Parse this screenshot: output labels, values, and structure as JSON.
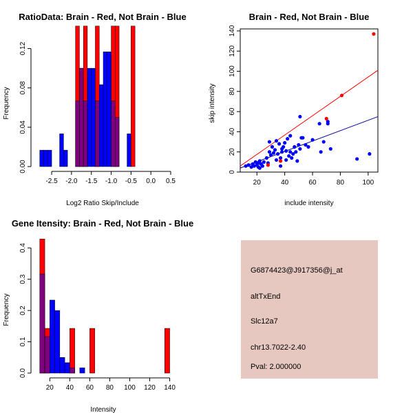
{
  "colors": {
    "brain": "#ff0000",
    "not_brain": "#0000ff",
    "overlap": "#7f007f",
    "panel_bg": "#e6c8c1",
    "pval": "#cc0000"
  },
  "chart_data": [
    {
      "type": "bar",
      "title": "RatioData: Brain - Red, Not Brain - Blue",
      "xlabel": "Log2 Ratio Skip/Include",
      "ylabel": "Frequency",
      "xlim": [
        -2.9,
        0.5
      ],
      "ylim": [
        0,
        0.14
      ],
      "bin_width": 0.1,
      "bin_start": -2.8,
      "x_ticks": [
        -2.5,
        -2.0,
        -1.5,
        -1.0,
        -0.5,
        0.0,
        0.5
      ],
      "x_tick_labels": [
        "-2.5",
        "-2.0",
        "-1.5",
        "-1.0",
        "-0.5",
        "0.0",
        "0.5"
      ],
      "y_ticks": [
        0.0,
        0.04,
        0.08,
        0.12
      ],
      "y_tick_labels": [
        "0.00",
        "0.04",
        "0.08",
        "0.12"
      ],
      "series": [
        {
          "name": "Not Brain",
          "values": [
            0.0167,
            0.0167,
            0.0167,
            0,
            0,
            0.0333,
            0.0167,
            0,
            0,
            0.0667,
            0.1,
            0.0667,
            0.1,
            0.1,
            0.0667,
            0.0833,
            0.1167,
            0.1167,
            0.0667,
            0.05,
            0,
            0,
            0.0333,
            0
          ]
        },
        {
          "name": "Brain",
          "values": [
            0,
            0,
            0,
            0,
            0,
            0,
            0,
            0,
            0,
            0.1429,
            0.1,
            0.1429,
            0,
            0,
            0.1429,
            0,
            0,
            0,
            0.1429,
            0.1429,
            0,
            0,
            0,
            0.1429
          ]
        }
      ]
    },
    {
      "type": "scatter",
      "title": "Brain - Red, Not Brain - Blue",
      "xlabel": "include intensity",
      "ylabel": "skip intensity",
      "xlim": [
        8,
        107
      ],
      "ylim": [
        0,
        142
      ],
      "x_ticks": [
        20,
        40,
        60,
        80,
        100
      ],
      "x_tick_labels": [
        "20",
        "40",
        "60",
        "80",
        "100"
      ],
      "y_ticks": [
        0,
        20,
        40,
        60,
        80,
        100,
        120,
        140
      ],
      "y_tick_labels": [
        "0",
        "20",
        "40",
        "60",
        "80",
        "100",
        "120",
        "140"
      ],
      "series": [
        {
          "name": "Not Brain",
          "points": [
            [
              12,
              6
            ],
            [
              14,
              7
            ],
            [
              16,
              5
            ],
            [
              17,
              8
            ],
            [
              18,
              6
            ],
            [
              19,
              10
            ],
            [
              20,
              7
            ],
            [
              21,
              9
            ],
            [
              21,
              5
            ],
            [
              22,
              11
            ],
            [
              22,
              4
            ],
            [
              23,
              8
            ],
            [
              24,
              6
            ],
            [
              25,
              10
            ],
            [
              27,
              14
            ],
            [
              28,
              9
            ],
            [
              29,
              20
            ],
            [
              29,
              30
            ],
            [
              30,
              17
            ],
            [
              31,
              25
            ],
            [
              32,
              19
            ],
            [
              33,
              22
            ],
            [
              34,
              12
            ],
            [
              34,
              31
            ],
            [
              35,
              18
            ],
            [
              36,
              28
            ],
            [
              37,
              6
            ],
            [
              37,
              14
            ],
            [
              38,
              20
            ],
            [
              38,
              23
            ],
            [
              39,
              25
            ],
            [
              40,
              29
            ],
            [
              41,
              21
            ],
            [
              41,
              12
            ],
            [
              42,
              33
            ],
            [
              43,
              16
            ],
            [
              44,
              20
            ],
            [
              44,
              36
            ],
            [
              45,
              14
            ],
            [
              46,
              18
            ],
            [
              47,
              25
            ],
            [
              48,
              20
            ],
            [
              49,
              11
            ],
            [
              50,
              27
            ],
            [
              51,
              55
            ],
            [
              51,
              23
            ],
            [
              52,
              34
            ],
            [
              53,
              34
            ],
            [
              55,
              27
            ],
            [
              57,
              25
            ],
            [
              60,
              32
            ],
            [
              65,
              48
            ],
            [
              66,
              20
            ],
            [
              68,
              30
            ],
            [
              71,
              50
            ],
            [
              71,
              48
            ],
            [
              73,
              23
            ],
            [
              92,
              13
            ],
            [
              101,
              18
            ]
          ]
        },
        {
          "name": "Brain",
          "points": [
            [
              28,
              7
            ],
            [
              37,
              11
            ],
            [
              70,
              53
            ],
            [
              81,
              76
            ],
            [
              104,
              137
            ]
          ]
        }
      ],
      "fit_lines": [
        {
          "name": "Brain fit",
          "from": [
            8,
            6
          ],
          "to": [
            107,
            101
          ]
        },
        {
          "name": "Not Brain fit",
          "from": [
            8,
            4
          ],
          "to": [
            107,
            55
          ]
        }
      ]
    },
    {
      "type": "bar",
      "title": "Gene Itensity: Brain - Red, Not Brain - Blue",
      "xlabel": "Intensity",
      "ylabel": "Frequency",
      "xlim": [
        6,
        141
      ],
      "ylim": [
        0,
        0.44
      ],
      "bin_width": 5,
      "bin_start": 10,
      "x_ticks": [
        20,
        40,
        60,
        80,
        100,
        120,
        140
      ],
      "x_tick_labels": [
        "20",
        "40",
        "60",
        "80",
        "100",
        "120",
        "140"
      ],
      "y_ticks": [
        0.0,
        0.1,
        0.2,
        0.3,
        0.4
      ],
      "y_tick_labels": [
        "0.0",
        "0.1",
        "0.2",
        "0.3",
        "0.4"
      ],
      "series": [
        {
          "name": "Not Brain",
          "values": [
            0.3167,
            0.1167,
            0.2333,
            0.2,
            0.05,
            0.0333,
            0.0167,
            0,
            0.0167,
            0,
            0,
            0,
            0,
            0,
            0,
            0,
            0,
            0,
            0,
            0,
            0,
            0,
            0,
            0,
            0,
            0
          ]
        },
        {
          "name": "Brain",
          "values": [
            0.4286,
            0.1429,
            0,
            0,
            0,
            0,
            0.1429,
            0,
            0,
            0,
            0.1429,
            0,
            0,
            0,
            0,
            0,
            0,
            0,
            0,
            0,
            0,
            0,
            0,
            0,
            0,
            0.1429
          ]
        }
      ]
    }
  ],
  "info_panel": {
    "probe_id": "G6874423@J917356@j_at",
    "event_type": "altTxEnd",
    "gene": "Slc12a7",
    "location": "chr13.7022-2.40",
    "pval": "Pval: 2.000000"
  }
}
